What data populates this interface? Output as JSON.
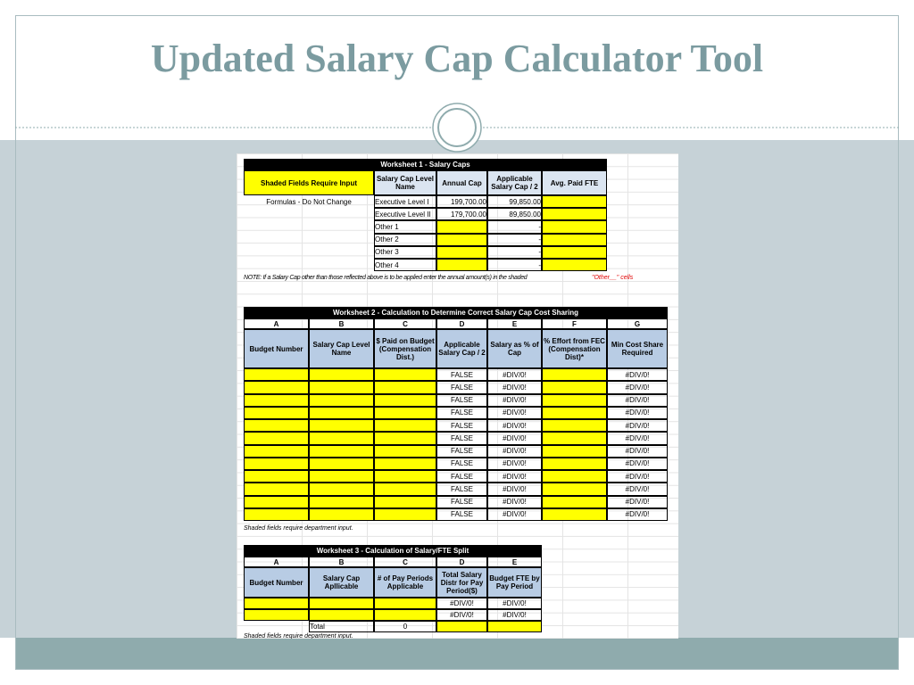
{
  "title": "Updated Salary Cap Calculator Tool",
  "worksheet1": {
    "title": "Worksheet 1 - Salary Caps",
    "shaded_label": "Shaded Fields Require Input",
    "formulas_label": "Formulas - Do Not Change",
    "headers": [
      "Salary Cap Level Name",
      "Annual Cap",
      "Applicable Salary Cap / 2",
      "Avg. Paid FTE"
    ],
    "rows": [
      {
        "name": "Executive Level I",
        "annual": "199,700.00",
        "half": "99,850.00"
      },
      {
        "name": "Executive Level II",
        "annual": "179,700.00",
        "half": "89,850.00"
      },
      {
        "name": "Other 1",
        "half": "-"
      },
      {
        "name": "Other 2",
        "half": "-"
      },
      {
        "name": "Other 3",
        "half": "-"
      },
      {
        "name": "Other 4",
        "half": "-"
      }
    ]
  },
  "note": {
    "text": "NOTE: If a Salary Cap other than those reflected above is to be applied enter the annual amount(s) in the shaded",
    "highlight": "\"Other__\" cells"
  },
  "worksheet2": {
    "title": "Worksheet 2 - Calculation to Determine Correct Salary Cap Cost Sharing",
    "letters": [
      "A",
      "B",
      "C",
      "D",
      "E",
      "F",
      "G"
    ],
    "headers": [
      "Budget Number",
      "Salary Cap Level Name",
      "$ Paid on Budget (Compensation Dist.)",
      "Applicable Salary Cap / 2",
      "Salary as % of Cap",
      "% Effort from FEC (Compensation Dist)*",
      "Min Cost Share Required"
    ],
    "rows": [
      [
        "FALSE",
        "#DIV/0!",
        "#DIV/0!"
      ],
      [
        "FALSE",
        "#DIV/0!",
        "#DIV/0!"
      ],
      [
        "FALSE",
        "#DIV/0!",
        "#DIV/0!"
      ],
      [
        "FALSE",
        "#DIV/0!",
        "#DIV/0!"
      ],
      [
        "FALSE",
        "#DIV/0!",
        "#DIV/0!"
      ],
      [
        "FALSE",
        "#DIV/0!",
        "#DIV/0!"
      ],
      [
        "FALSE",
        "#DIV/0!",
        "#DIV/0!"
      ],
      [
        "FALSE",
        "#DIV/0!",
        "#DIV/0!"
      ],
      [
        "FALSE",
        "#DIV/0!",
        "#DIV/0!"
      ],
      [
        "FALSE",
        "#DIV/0!",
        "#DIV/0!"
      ],
      [
        "FALSE",
        "#DIV/0!",
        "#DIV/0!"
      ],
      [
        "FALSE",
        "#DIV/0!",
        "#DIV/0!"
      ]
    ],
    "footnote": "Shaded fields require department input."
  },
  "worksheet3": {
    "title": "Worksheet 3 - Calculation of Salary/FTE Split",
    "letters": [
      "A",
      "B",
      "C",
      "D",
      "E"
    ],
    "headers": [
      "Budget Number",
      "Salary Cap Apllicable",
      "# of Pay Periods Applicable",
      "Total Salary Distr for Pay Period($)",
      "Budget FTE by Pay Period"
    ],
    "rows": [
      [
        "#DIV/0!",
        "#DIV/0!"
      ],
      [
        "#DIV/0!",
        "#DIV/0!"
      ]
    ],
    "total_label": "Total",
    "total_value": "0",
    "footnote": "Shaded fields require department input."
  }
}
